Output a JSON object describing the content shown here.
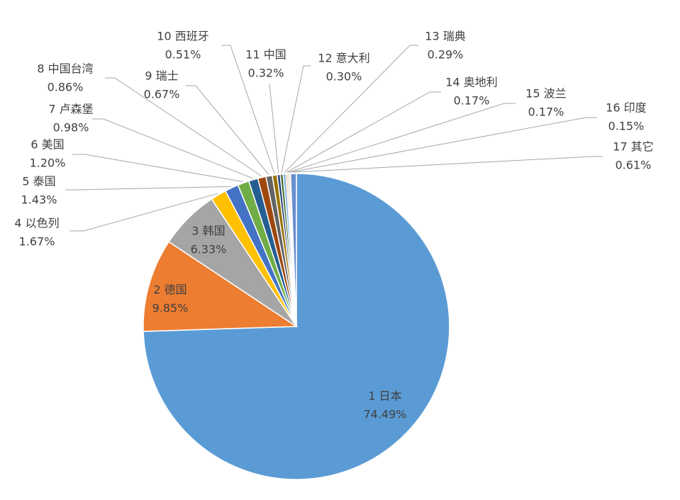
{
  "chart_data": {
    "type": "pie",
    "categories": [
      "1 日本",
      "2 德国",
      "3 韩国",
      "4 以色列",
      "5 泰国",
      "6 美国",
      "7 卢森堡",
      "8 中国台湾",
      "9 瑞士",
      "10 西班牙",
      "11 中国",
      "12 意大利",
      "13 瑞典",
      "14 奥地利",
      "15 波兰",
      "16 印度",
      "17 其它"
    ],
    "values": [
      74.49,
      9.85,
      6.33,
      1.67,
      1.43,
      1.2,
      0.98,
      0.86,
      0.67,
      0.51,
      0.32,
      0.3,
      0.29,
      0.17,
      0.17,
      0.15,
      0.61
    ],
    "value_labels": [
      "74.49%",
      "9.85%",
      "6.33%",
      "1.67%",
      "1.43%",
      "1.20%",
      "0.98%",
      "0.86%",
      "0.67%",
      "0.51%",
      "0.32%",
      "0.30%",
      "0.29%",
      "0.17%",
      "0.17%",
      "0.15%",
      "0.61%"
    ],
    "colors": [
      "#5b9bd5",
      "#ed7d31",
      "#a5a5a5",
      "#ffc000",
      "#4472c4",
      "#70ad47",
      "#255e91",
      "#9e480e",
      "#636363",
      "#997300",
      "#264478",
      "#43682b",
      "#7cafdd",
      "#f1975a",
      "#b7b7b7",
      "#ffcd33",
      "#698ed0"
    ]
  }
}
